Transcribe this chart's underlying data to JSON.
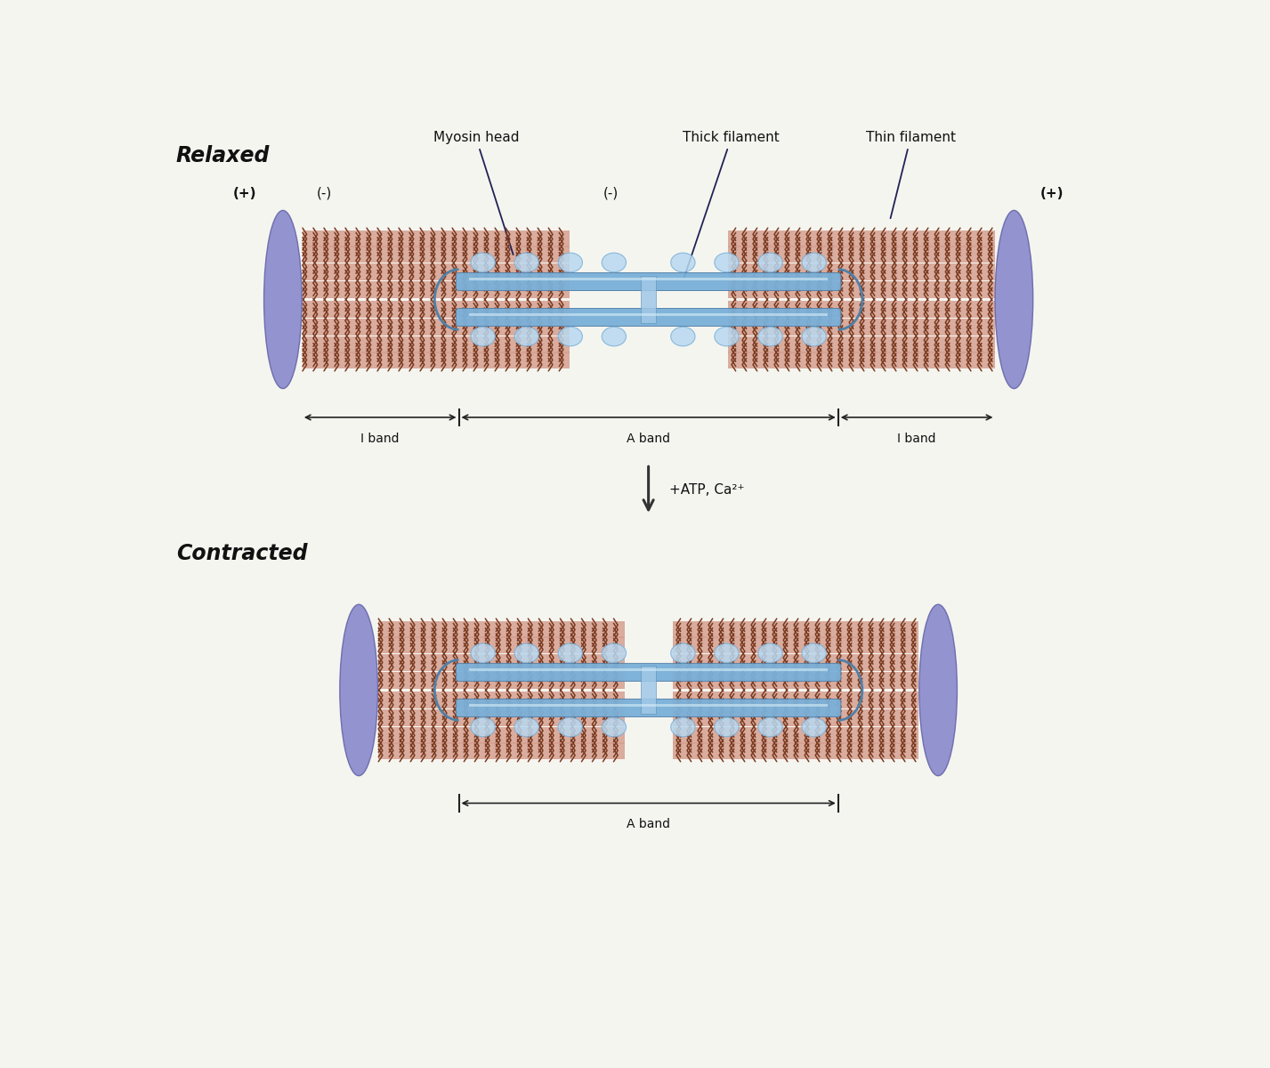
{
  "bg_color": "#ffffff",
  "title_relaxed": "Relaxed",
  "title_contracted": "Contracted",
  "label_myosin_head": "Myosin head",
  "label_thick_filament": "Thick filament",
  "label_thin_filament": "Thin filament",
  "label_a_band": "A band",
  "label_i_band": "I band",
  "label_atp": "+ATP, Ca²⁺",
  "plus_label": "(+)",
  "minus_label": "(-)",
  "actin_strip_color": "#c87a60",
  "actin_bg_color": "#d4a090",
  "chevron_color": "#7a3a20",
  "myosin_blue": "#7ab0d8",
  "myosin_light": "#b8d8f0",
  "myosin_head_color": "#c8ddf0",
  "zdisk_color": "#8888cc",
  "zdisk_edge": "#6666aa",
  "arrow_color": "#222222",
  "text_color": "#111111",
  "ann_color": "#333366"
}
